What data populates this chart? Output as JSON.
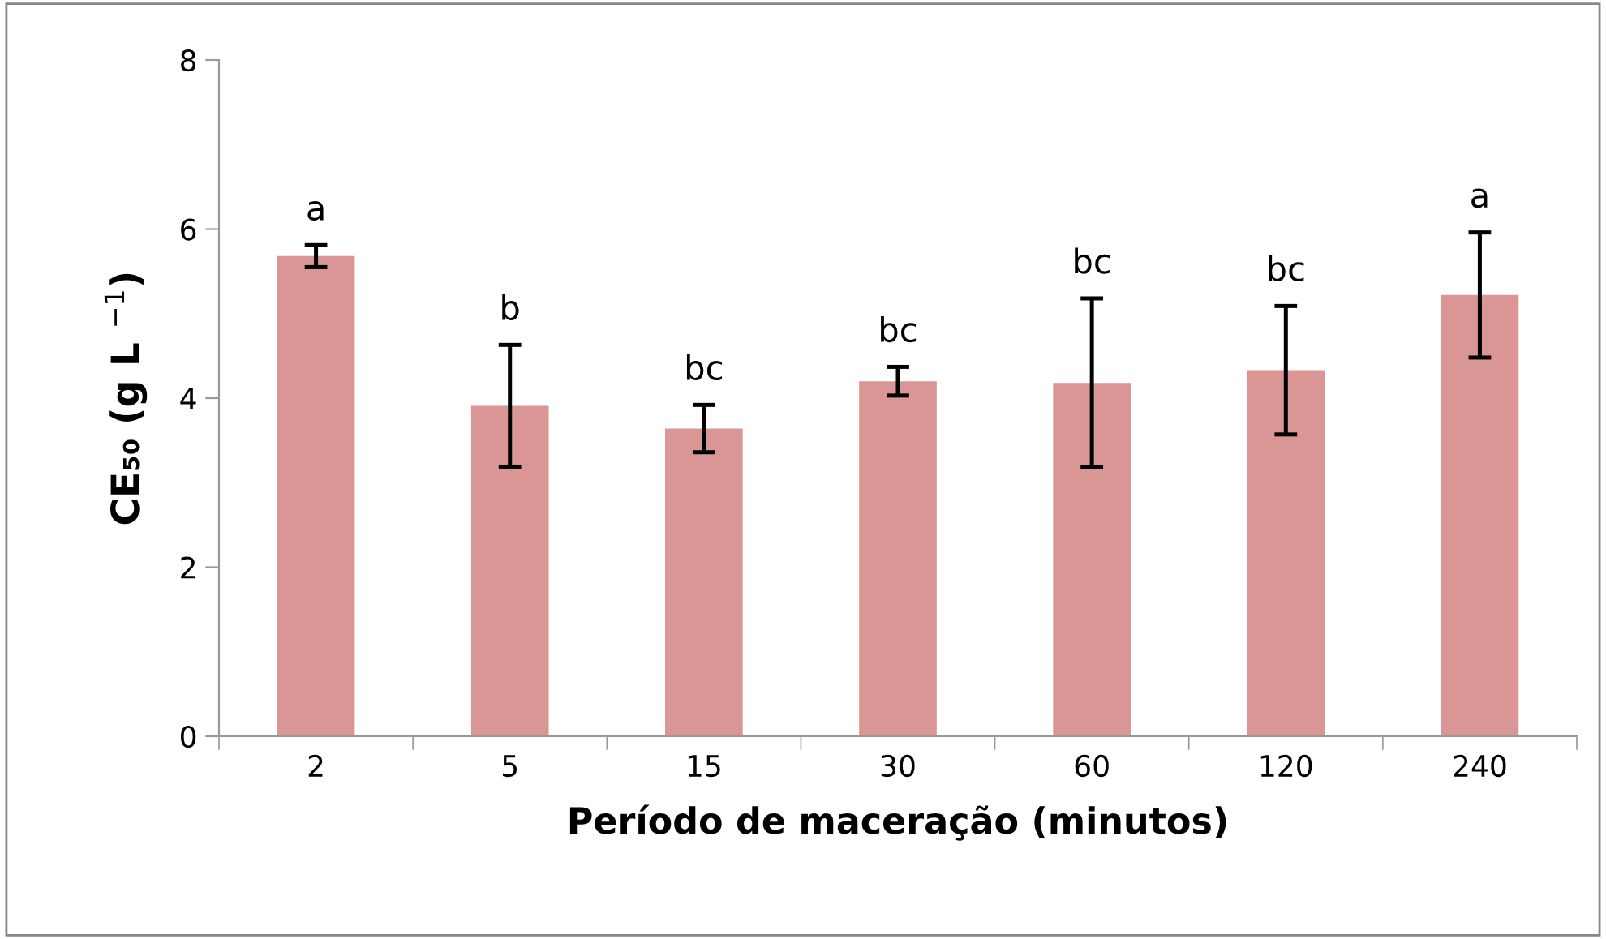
{
  "chart_data": {
    "type": "bar",
    "xlabel": "Período de maceração (minutos)",
    "ylabel": "CE₅₀ (g L $^{−1}$)",
    "categories": [
      "2",
      "5",
      "15",
      "30",
      "60",
      "120",
      "240"
    ],
    "values": [
      5.68,
      3.91,
      3.64,
      4.2,
      4.18,
      4.33,
      5.22
    ],
    "errors": [
      0.13,
      0.72,
      0.28,
      0.17,
      1.0,
      0.76,
      0.74
    ],
    "color": "#d99694",
    "ylim": [
      0,
      8
    ],
    "yticks": [
      0,
      2,
      4,
      6,
      8
    ],
    "grid": false,
    "annotations": [
      {
        "text": "a",
        "x": "2",
        "y": 5.81
      },
      {
        "text": "b",
        "x": "5",
        "y": 4.63
      },
      {
        "text": "bc",
        "x": "15",
        "y": 3.92
      },
      {
        "text": "bc",
        "x": "30",
        "y": 4.37
      },
      {
        "text": "bc",
        "x": "60",
        "y": 5.18
      },
      {
        "text": "bc",
        "x": "120",
        "y": 5.09
      },
      {
        "text": "a",
        "x": "240",
        "y": 5.96
      }
    ]
  }
}
